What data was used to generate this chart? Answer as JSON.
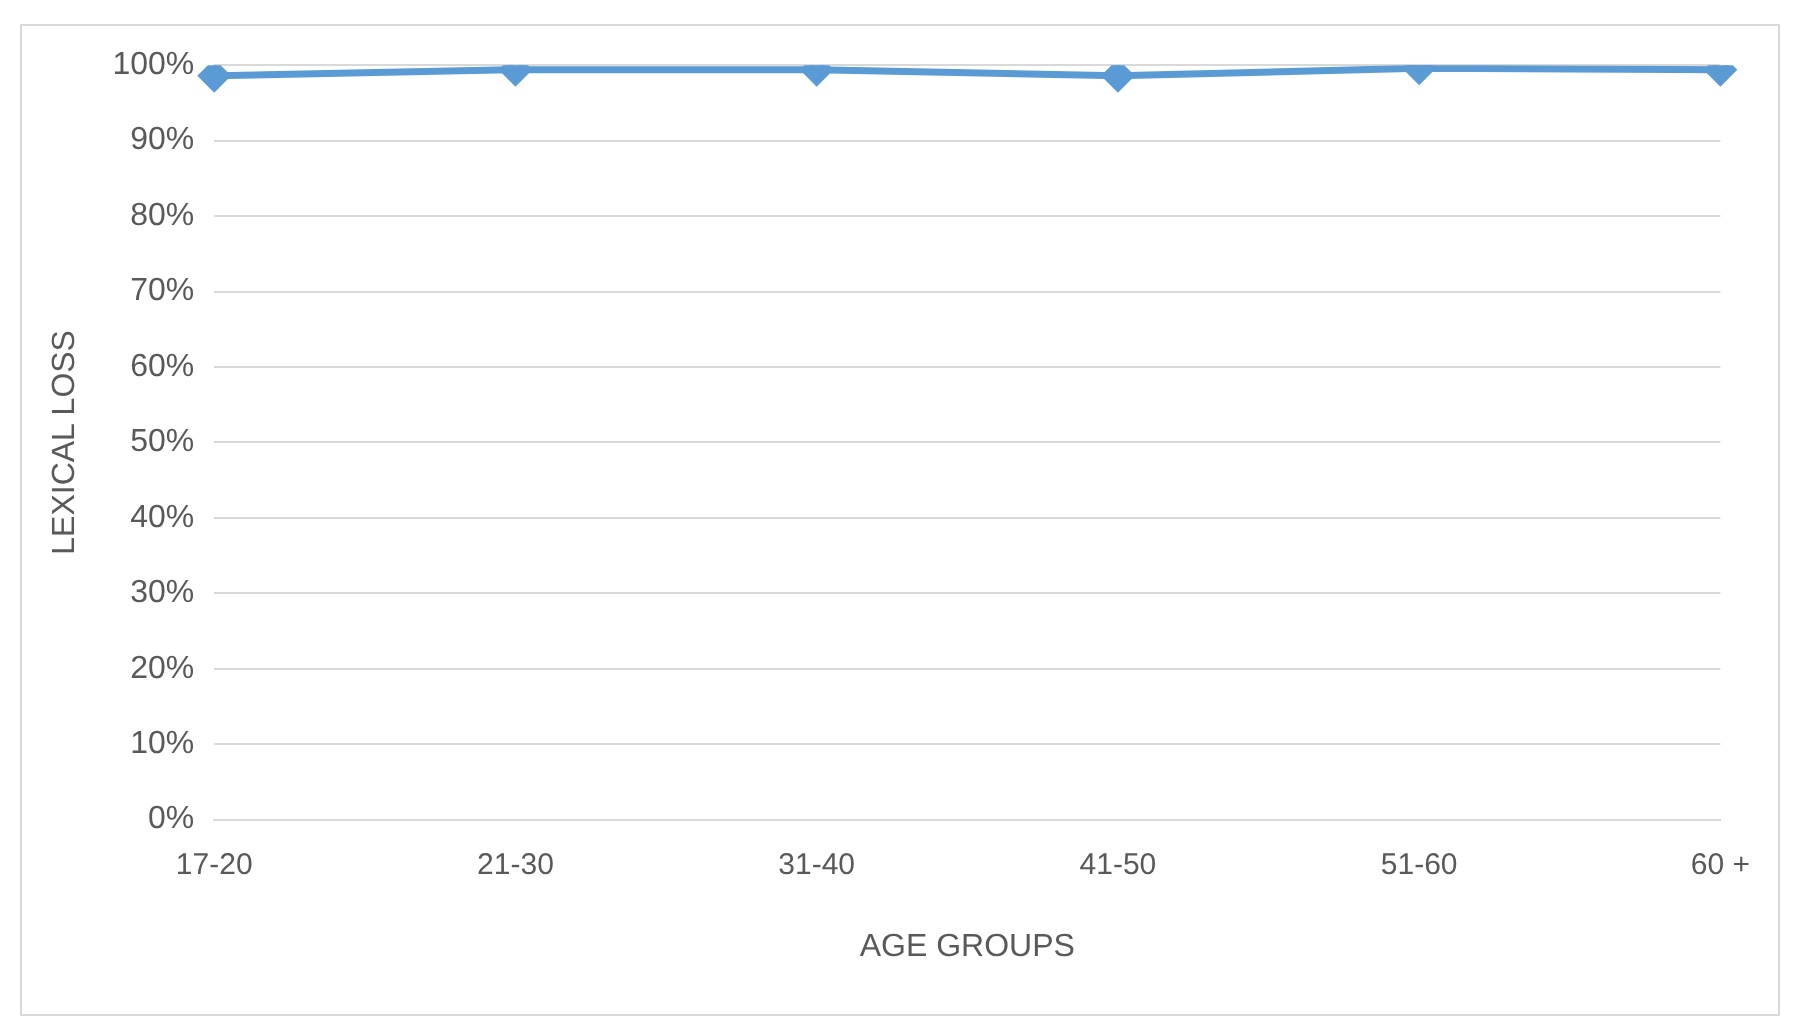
{
  "chart_data": {
    "type": "line",
    "xlabel": "AGE GROUPS",
    "ylabel": "LEXICAL LOSS",
    "categories": [
      "17-20",
      "21-30",
      "31-40",
      "41-50",
      "51-60",
      "60 +"
    ],
    "series": [
      {
        "color": "#5b9bd5",
        "values": [
          98.6,
          99.4,
          99.4,
          98.6,
          99.6,
          99.4
        ]
      }
    ],
    "ylim": [
      0,
      100
    ],
    "yticks": [
      {
        "value": 0,
        "label": "0%"
      },
      {
        "value": 10,
        "label": "10%"
      },
      {
        "value": 20,
        "label": "20%"
      },
      {
        "value": 30,
        "label": "30%"
      },
      {
        "value": 40,
        "label": "40%"
      },
      {
        "value": 50,
        "label": "50%"
      },
      {
        "value": 60,
        "label": "60%"
      },
      {
        "value": 70,
        "label": "70%"
      },
      {
        "value": 80,
        "label": "80%"
      },
      {
        "value": 90,
        "label": "90%"
      },
      {
        "value": 100,
        "label": "100%"
      }
    ],
    "grid": "y",
    "legend": false,
    "marker": "diamond",
    "line_style": "solid"
  }
}
